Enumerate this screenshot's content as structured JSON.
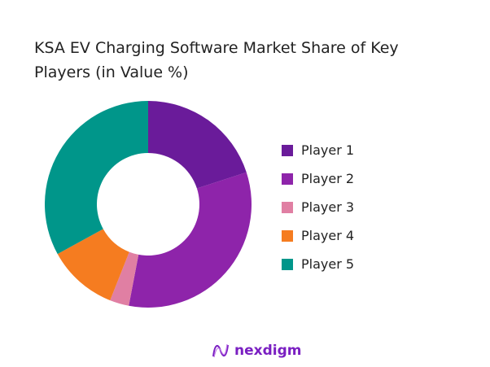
{
  "chart_data": {
    "type": "pie",
    "variant": "donut",
    "title": "KSA EV Charging Software Market Share of Key Players (in Value %)",
    "categories": [
      "Player 1",
      "Player 2",
      "Player 3",
      "Player 4",
      "Player 5"
    ],
    "values": [
      20,
      33,
      3,
      11,
      33
    ],
    "colors": [
      "#6a1b9a",
      "#8e24aa",
      "#e07fa3",
      "#f57c20",
      "#00968a"
    ],
    "legend": "right",
    "start_angle": "top, clockwise"
  },
  "logo": {
    "text": "nexdigm"
  }
}
